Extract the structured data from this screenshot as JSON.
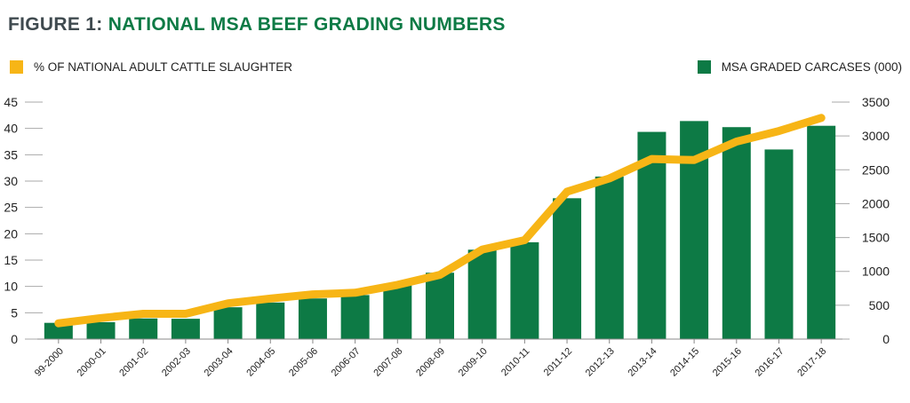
{
  "header": {
    "figure_label": "FIGURE 1:",
    "title": "NATIONAL MSA BEEF GRADING NUMBERS"
  },
  "colors": {
    "bar": "#0d7a45",
    "line": "#f7b516",
    "title_green": "#0d7a45",
    "title_grey": "#3f4a4f"
  },
  "chart_data": {
    "type": "bar",
    "categories": [
      "99-2000",
      "2000-01",
      "2001-02",
      "2002-03",
      "2003-04",
      "2004-05",
      "2005-06",
      "2006-07",
      "2007-08",
      "2008-09",
      "2009-10",
      "2010-11",
      "2011-12",
      "2012-13",
      "2013-14",
      "2014-15",
      "2015-16",
      "2016-17",
      "2017-18"
    ],
    "series": [
      {
        "name": "MSA GRADED CARCASES (000)",
        "type": "bar",
        "axis": "right",
        "values": [
          240,
          250,
          305,
          300,
          470,
          540,
          600,
          650,
          810,
          980,
          1320,
          1430,
          2080,
          2400,
          3060,
          3220,
          3130,
          2800,
          3150
        ]
      },
      {
        "name": "% OF NATIONAL ADULT CATTLE SLAUGHTER",
        "type": "line",
        "axis": "left",
        "values": [
          3,
          4,
          4.8,
          4.8,
          6.8,
          7.7,
          8.5,
          8.8,
          10.3,
          12.2,
          17,
          18.8,
          28,
          30.5,
          34.2,
          34,
          37.5,
          39.5,
          42
        ]
      }
    ],
    "y_left": {
      "ticks": [
        "0",
        "5",
        "10",
        "15",
        "20",
        "25",
        "30",
        "35",
        "40",
        "45"
      ],
      "range": [
        0,
        45
      ]
    },
    "y_right": {
      "ticks": [
        "0",
        "500",
        "1000",
        "1500",
        "2000",
        "2500",
        "3000",
        "3500"
      ],
      "range": [
        0,
        3500
      ]
    },
    "legend": {
      "left_label": "% OF NATIONAL ADULT CATTLE SLAUGHTER",
      "right_label": "MSA GRADED CARCASES (000)"
    },
    "legend_position": "top",
    "grid": false
  }
}
